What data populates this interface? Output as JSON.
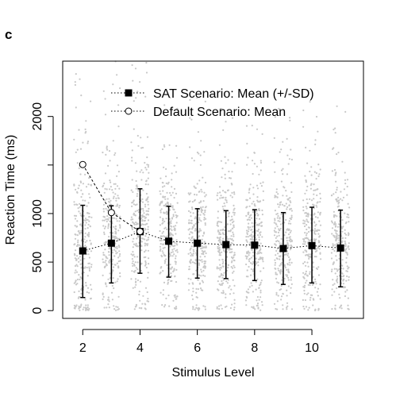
{
  "panel_label": "c",
  "chart_data": {
    "type": "scatter",
    "xlabel": "Stimulus Level",
    "ylabel": "Reaction Time (ms)",
    "xlim": [
      1.3,
      11.8
    ],
    "ylim": [
      -80,
      2570
    ],
    "x_ticks": [
      2,
      4,
      6,
      8,
      10
    ],
    "y_ticks": [
      0,
      500,
      1000,
      2000
    ],
    "grid": false,
    "legend_position": "top-right",
    "colors": {
      "raw_points": "#c8c8c8",
      "series": "#000000"
    },
    "raw_data": {
      "description": "",
      "x_levels": [
        2,
        3,
        4,
        5,
        6,
        7,
        8,
        9,
        10,
        11
      ],
      "y_max": 2570,
      "y_min": 0
    },
    "series": [
      {
        "name": "SAT Scenario: Mean (+/-SD)",
        "marker": "filled-square",
        "line": "dotted",
        "x": [
          2,
          3,
          4,
          5,
          6,
          7,
          8,
          9,
          10,
          11
        ],
        "mean": [
          615,
          695,
          815,
          715,
          695,
          680,
          675,
          640,
          670,
          645
        ],
        "sd_low": [
          135,
          285,
          385,
          345,
          335,
          330,
          310,
          270,
          285,
          245
        ],
        "sd_high": [
          1085,
          1080,
          1255,
          1075,
          1050,
          1030,
          1040,
          1010,
          1065,
          1035
        ]
      },
      {
        "name": "Default Scenario: Mean",
        "marker": "open-circle",
        "line": "dashed",
        "x": [
          2,
          3,
          4
        ],
        "mean": [
          1505,
          1010,
          815
        ]
      }
    ]
  }
}
